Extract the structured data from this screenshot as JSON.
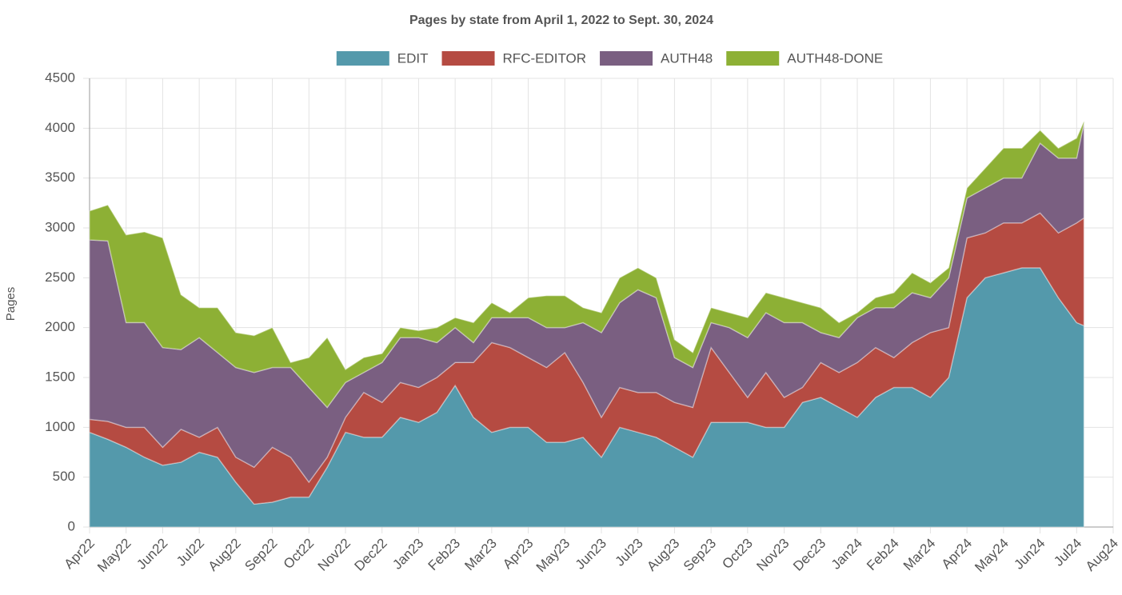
{
  "chart_data": {
    "type": "stacked_area",
    "title": "Pages by state from April 1, 2022 to Sept. 30, 2024",
    "y_label": "Pages",
    "x": [
      0,
      0.5,
      1,
      1.5,
      2,
      2.5,
      3,
      3.5,
      4,
      4.5,
      5,
      5.5,
      6,
      6.5,
      7,
      7.5,
      8,
      8.5,
      9,
      9.5,
      10,
      10.5,
      11,
      11.5,
      12,
      12.5,
      13,
      13.5,
      14,
      14.5,
      15,
      15.5,
      16,
      16.5,
      17,
      17.5,
      18,
      18.5,
      19,
      19.5,
      20,
      20.5,
      21,
      21.5,
      22,
      22.5,
      23,
      23.5,
      24,
      24.5,
      25,
      25.5,
      26,
      26.5,
      27,
      27.2
    ],
    "xlim": [
      0,
      28
    ],
    "xticks": [
      {
        "value": 0,
        "label": "Apr22"
      },
      {
        "value": 1,
        "label": "May22"
      },
      {
        "value": 2,
        "label": "Jun22"
      },
      {
        "value": 3,
        "label": "Jul22"
      },
      {
        "value": 4,
        "label": "Aug22"
      },
      {
        "value": 5,
        "label": "Sep22"
      },
      {
        "value": 6,
        "label": "Oct22"
      },
      {
        "value": 7,
        "label": "Nov22"
      },
      {
        "value": 8,
        "label": "Dec22"
      },
      {
        "value": 9,
        "label": "Jan23"
      },
      {
        "value": 10,
        "label": "Feb23"
      },
      {
        "value": 11,
        "label": "Mar23"
      },
      {
        "value": 12,
        "label": "Apr23"
      },
      {
        "value": 13,
        "label": "May23"
      },
      {
        "value": 14,
        "label": "Jun23"
      },
      {
        "value": 15,
        "label": "Jul23"
      },
      {
        "value": 16,
        "label": "Aug23"
      },
      {
        "value": 17,
        "label": "Sep23"
      },
      {
        "value": 18,
        "label": "Oct23"
      },
      {
        "value": 19,
        "label": "Nov23"
      },
      {
        "value": 20,
        "label": "Dec23"
      },
      {
        "value": 21,
        "label": "Jan24"
      },
      {
        "value": 22,
        "label": "Feb24"
      },
      {
        "value": 23,
        "label": "Mar24"
      },
      {
        "value": 24,
        "label": "Apr24"
      },
      {
        "value": 25,
        "label": "May24"
      },
      {
        "value": 26,
        "label": "Jun24"
      },
      {
        "value": 27,
        "label": "Jul24"
      },
      {
        "value": 28,
        "label": "Aug24"
      }
    ],
    "ylim": [
      0,
      4500
    ],
    "yticks": [
      0,
      500,
      1000,
      1500,
      2000,
      2500,
      3000,
      3500,
      4000,
      4500
    ],
    "grid": true,
    "legend": "top",
    "series": [
      {
        "name": "EDIT",
        "color": "#5499ab",
        "values": [
          950,
          880,
          800,
          700,
          620,
          650,
          750,
          700,
          450,
          230,
          250,
          300,
          300,
          600,
          950,
          900,
          900,
          1100,
          1050,
          1150,
          1420,
          1100,
          950,
          1000,
          1000,
          850,
          850,
          900,
          700,
          1000,
          950,
          900,
          800,
          700,
          1050,
          1050,
          1050,
          1000,
          1000,
          1250,
          1300,
          1200,
          1100,
          1300,
          1400,
          1400,
          1300,
          1500,
          2300,
          2500,
          2550,
          2600,
          2600,
          2300,
          2050,
          2020
        ]
      },
      {
        "name": "RFC-EDITOR",
        "color": "#b54b42",
        "values": [
          130,
          180,
          200,
          300,
          180,
          330,
          150,
          300,
          250,
          370,
          550,
          400,
          150,
          100,
          150,
          450,
          350,
          350,
          350,
          350,
          230,
          550,
          900,
          800,
          700,
          750,
          900,
          550,
          400,
          400,
          400,
          450,
          450,
          500,
          750,
          500,
          250,
          550,
          300,
          150,
          350,
          350,
          550,
          500,
          300,
          450,
          650,
          500,
          600,
          450,
          500,
          450,
          550,
          650,
          1000,
          1080
        ]
      },
      {
        "name": "AUTH48",
        "color": "#7a5f81",
        "values": [
          1800,
          1810,
          1050,
          1050,
          1000,
          800,
          1000,
          750,
          900,
          950,
          800,
          900,
          950,
          500,
          350,
          200,
          400,
          450,
          500,
          350,
          350,
          200,
          250,
          300,
          400,
          400,
          250,
          600,
          850,
          850,
          1030,
          950,
          450,
          400,
          250,
          450,
          600,
          600,
          750,
          650,
          300,
          350,
          450,
          400,
          500,
          500,
          350,
          500,
          400,
          450,
          450,
          450,
          700,
          750,
          650,
          950
        ]
      },
      {
        "name": "AUTH48-DONE",
        "color": "#8db035",
        "values": [
          290,
          360,
          880,
          910,
          1100,
          550,
          300,
          450,
          350,
          370,
          400,
          50,
          300,
          700,
          130,
          150,
          90,
          100,
          70,
          150,
          100,
          200,
          150,
          50,
          200,
          320,
          320,
          150,
          200,
          250,
          220,
          200,
          180,
          150,
          150,
          150,
          200,
          200,
          250,
          200,
          250,
          150,
          50,
          100,
          150,
          200,
          150,
          100,
          100,
          200,
          300,
          300,
          130,
          100,
          200,
          20
        ]
      }
    ]
  }
}
